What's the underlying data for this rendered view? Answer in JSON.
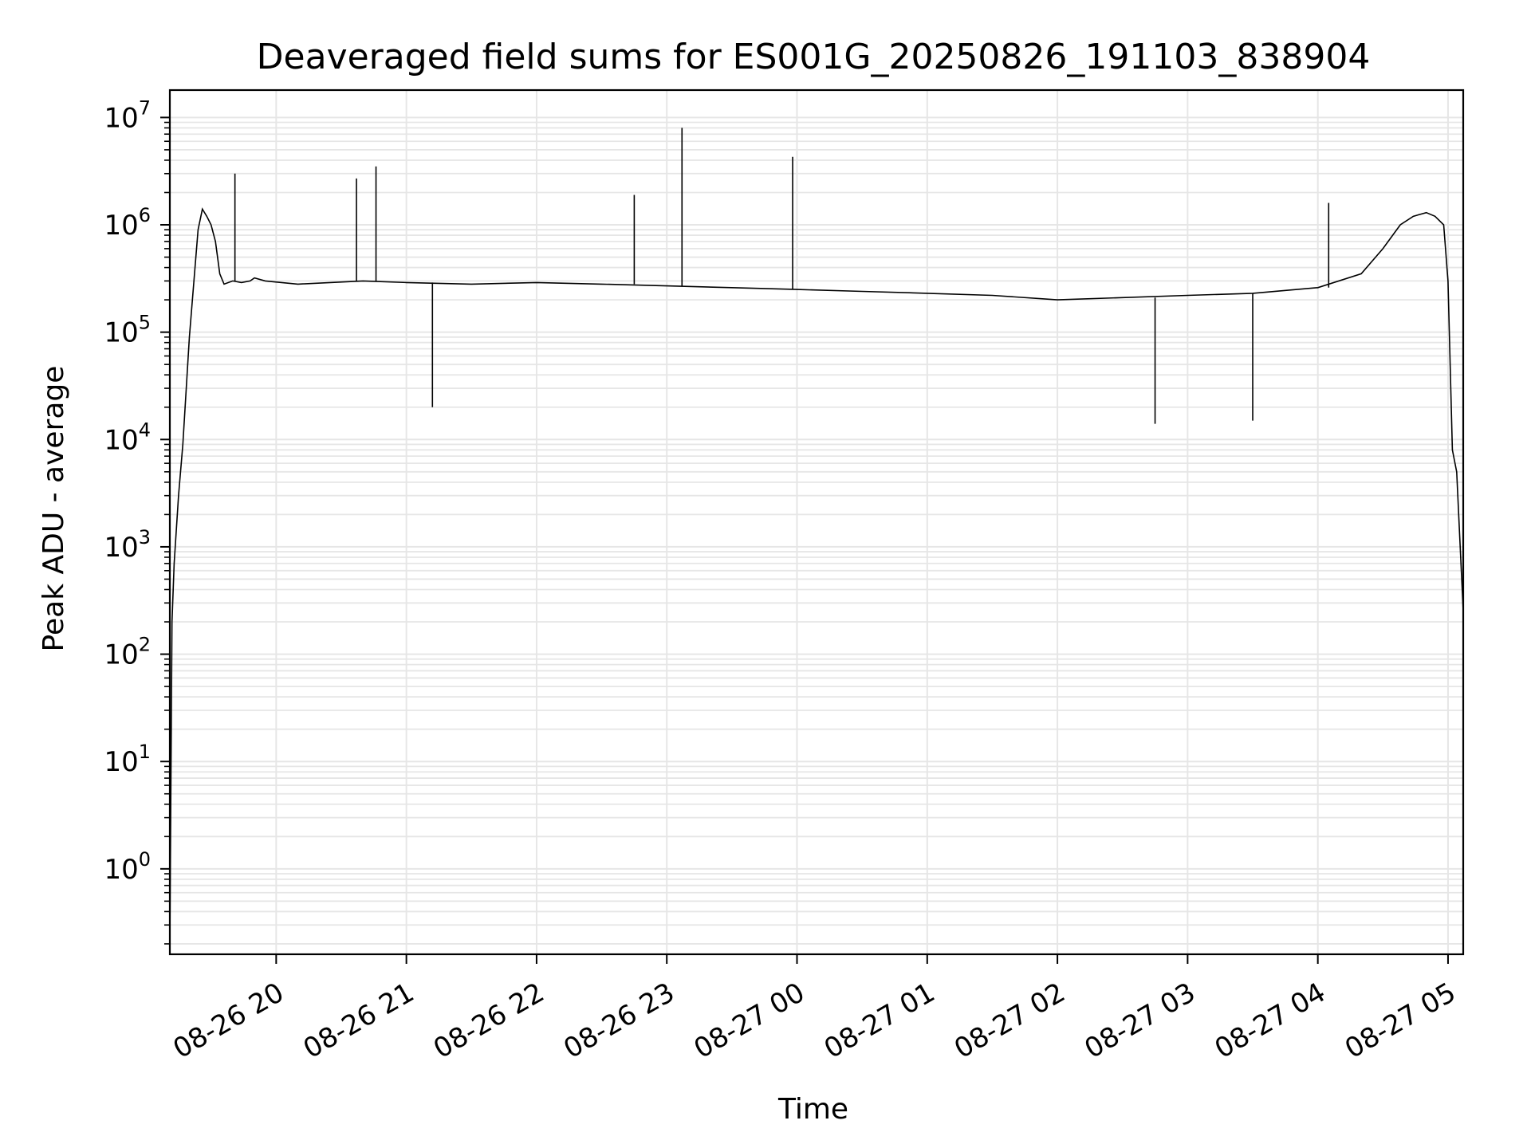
{
  "chart_data": {
    "type": "line",
    "title": "Deaveraged field sums for ES001G_20250826_191103_838904",
    "xlabel": "Time",
    "ylabel": "Peak ADU - average",
    "yscale": "log",
    "grid": true,
    "line_color": "#000000",
    "grid_color": "#e6e6e6",
    "xlim": [
      "2025-08-26 19:11",
      "2025-08-27 05:07"
    ],
    "ylim": [
      0.16,
      18000000
    ],
    "x_ticks": [
      {
        "label": "08-26 20",
        "time": "2025-08-26 20:00"
      },
      {
        "label": "08-26 21",
        "time": "2025-08-26 21:00"
      },
      {
        "label": "08-26 22",
        "time": "2025-08-26 22:00"
      },
      {
        "label": "08-26 23",
        "time": "2025-08-26 23:00"
      },
      {
        "label": "08-27 00",
        "time": "2025-08-27 00:00"
      },
      {
        "label": "08-27 01",
        "time": "2025-08-27 01:00"
      },
      {
        "label": "08-27 02",
        "time": "2025-08-27 02:00"
      },
      {
        "label": "08-27 03",
        "time": "2025-08-27 03:00"
      },
      {
        "label": "08-27 04",
        "time": "2025-08-27 04:00"
      },
      {
        "label": "08-27 05",
        "time": "2025-08-27 05:00"
      }
    ],
    "y_ticks": [
      {
        "base": "10",
        "exp": "0",
        "value": 1
      },
      {
        "base": "10",
        "exp": "1",
        "value": 10
      },
      {
        "base": "10",
        "exp": "2",
        "value": 100
      },
      {
        "base": "10",
        "exp": "3",
        "value": 1000
      },
      {
        "base": "10",
        "exp": "4",
        "value": 10000
      },
      {
        "base": "10",
        "exp": "5",
        "value": 100000
      },
      {
        "base": "10",
        "exp": "6",
        "value": 1000000
      },
      {
        "base": "10",
        "exp": "7",
        "value": 10000000
      }
    ],
    "series": [
      {
        "x": [
          "2025-08-26 19:11",
          "2025-08-26 19:12",
          "2025-08-26 19:13",
          "2025-08-26 19:15",
          "2025-08-26 19:17",
          "2025-08-26 19:20",
          "2025-08-26 19:24",
          "2025-08-26 19:26",
          "2025-08-26 19:28",
          "2025-08-26 19:30",
          "2025-08-26 19:32",
          "2025-08-26 19:34",
          "2025-08-26 19:36",
          "2025-08-26 19:40",
          "2025-08-26 19:44",
          "2025-08-26 19:48",
          "2025-08-26 19:50",
          "2025-08-26 19:55",
          "2025-08-26 20:10",
          "2025-08-26 20:40",
          "2025-08-26 21:00",
          "2025-08-26 21:30",
          "2025-08-26 22:00",
          "2025-08-26 22:30",
          "2025-08-26 23:00",
          "2025-08-26 23:30",
          "2025-08-27 00:00",
          "2025-08-27 00:30",
          "2025-08-27 01:00",
          "2025-08-27 01:30",
          "2025-08-27 02:00",
          "2025-08-27 02:30",
          "2025-08-27 03:00",
          "2025-08-27 03:30",
          "2025-08-27 04:00",
          "2025-08-27 04:20",
          "2025-08-27 04:30",
          "2025-08-27 04:38",
          "2025-08-27 04:44",
          "2025-08-27 04:50",
          "2025-08-27 04:54",
          "2025-08-27 04:58",
          "2025-08-27 05:00",
          "2025-08-27 05:02",
          "2025-08-27 05:04",
          "2025-08-27 05:07"
        ],
        "y": [
          0.2,
          200,
          700,
          3000,
          9000,
          90000,
          900000,
          1400000,
          1200000,
          1000000,
          700000,
          350000,
          280000,
          300000,
          290000,
          300000,
          320000,
          300000,
          280000,
          300000,
          290000,
          280000,
          290000,
          280000,
          270000,
          260000,
          250000,
          240000,
          230000,
          220000,
          200000,
          210000,
          220000,
          230000,
          260000,
          350000,
          600000,
          1000000,
          1200000,
          1300000,
          1200000,
          1000000,
          300000,
          8000,
          5000,
          250
        ]
      }
    ],
    "spikes": [
      {
        "time": "2025-08-26 19:41",
        "value": 3000000
      },
      {
        "time": "2025-08-26 20:37",
        "value": 2700000
      },
      {
        "time": "2025-08-26 20:46",
        "value": 3500000
      },
      {
        "time": "2025-08-26 22:45",
        "value": 1900000
      },
      {
        "time": "2025-08-26 23:07",
        "value": 8000000
      },
      {
        "time": "2025-08-26 23:58",
        "value": 4300000
      },
      {
        "time": "2025-08-27 04:05",
        "value": 1600000
      },
      {
        "time": "2025-08-26 21:12",
        "value": 20000
      },
      {
        "time": "2025-08-27 02:45",
        "value": 14000
      },
      {
        "time": "2025-08-27 03:30",
        "value": 15000
      }
    ]
  }
}
